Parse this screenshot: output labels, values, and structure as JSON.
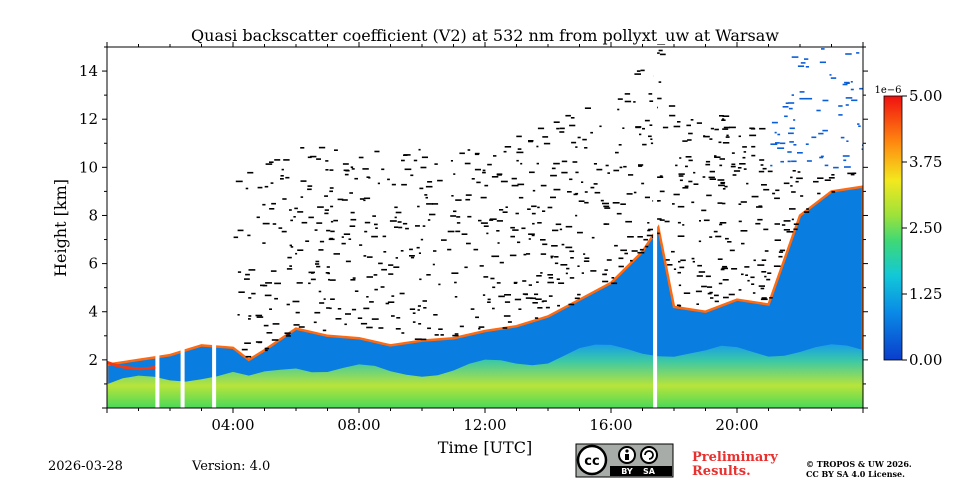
{
  "chart_data": {
    "type": "heatmap",
    "title": "Quasi backscatter coefficient (V2) at 532 nm from pollyxt_uw at Warsaw",
    "xlabel": "Time [UTC]",
    "ylabel": "Height [km]",
    "xlim_hours": [
      0,
      24
    ],
    "ylim_km": [
      0,
      15
    ],
    "x_ticks": [
      {
        "hour": 4,
        "label": "04:00"
      },
      {
        "hour": 8,
        "label": "08:00"
      },
      {
        "hour": 12,
        "label": "12:00"
      },
      {
        "hour": 16,
        "label": "16:00"
      },
      {
        "hour": 20,
        "label": "20:00"
      }
    ],
    "y_ticks": [
      {
        "value": 2,
        "label": "2"
      },
      {
        "value": 4,
        "label": "4"
      },
      {
        "value": 6,
        "label": "6"
      },
      {
        "value": 8,
        "label": "8"
      },
      {
        "value": 10,
        "label": "10"
      },
      {
        "value": 12,
        "label": "12"
      },
      {
        "value": 14,
        "label": "14"
      }
    ],
    "colorbar": {
      "multiplier": "1e−6",
      "range": [
        0,
        5
      ],
      "ticks": [
        {
          "value": 0,
          "label": "0.00"
        },
        {
          "value": 1.25,
          "label": "1.25"
        },
        {
          "value": 2.5,
          "label": "2.50"
        },
        {
          "value": 3.75,
          "label": "3.75"
        },
        {
          "value": 5,
          "label": "5.00"
        }
      ]
    },
    "boundary_layer_top_km": [
      [
        0,
        1.8
      ],
      [
        1,
        2.0
      ],
      [
        2,
        2.2
      ],
      [
        3,
        2.6
      ],
      [
        4,
        2.5
      ],
      [
        4.5,
        2.0
      ],
      [
        5,
        2.4
      ],
      [
        6,
        3.3
      ],
      [
        7,
        3.0
      ],
      [
        8,
        2.9
      ],
      [
        9,
        2.6
      ],
      [
        10,
        2.8
      ],
      [
        11,
        2.9
      ],
      [
        12,
        3.2
      ],
      [
        13,
        3.4
      ],
      [
        14,
        3.8
      ],
      [
        15,
        4.5
      ],
      [
        16,
        5.2
      ],
      [
        17,
        6.5
      ],
      [
        17.5,
        7.5
      ],
      [
        18,
        4.2
      ],
      [
        19,
        4.0
      ],
      [
        20,
        4.5
      ],
      [
        21,
        4.3
      ],
      [
        22,
        8.0
      ],
      [
        23,
        9.0
      ],
      [
        24,
        9.2
      ]
    ],
    "data_gaps_hours": [
      1.6,
      2.4,
      3.4,
      17.4
    ]
  },
  "footer": {
    "date": "2026-03-28",
    "version": "Version: 4.0",
    "license_badge": [
      "cc",
      "BY",
      "SA"
    ],
    "preliminary_line1": "Preliminary",
    "preliminary_line2": "Results.",
    "copyright_line1": "© TROPOS & UW 2026.",
    "copyright_line2": "CC BY SA 4.0 License."
  }
}
